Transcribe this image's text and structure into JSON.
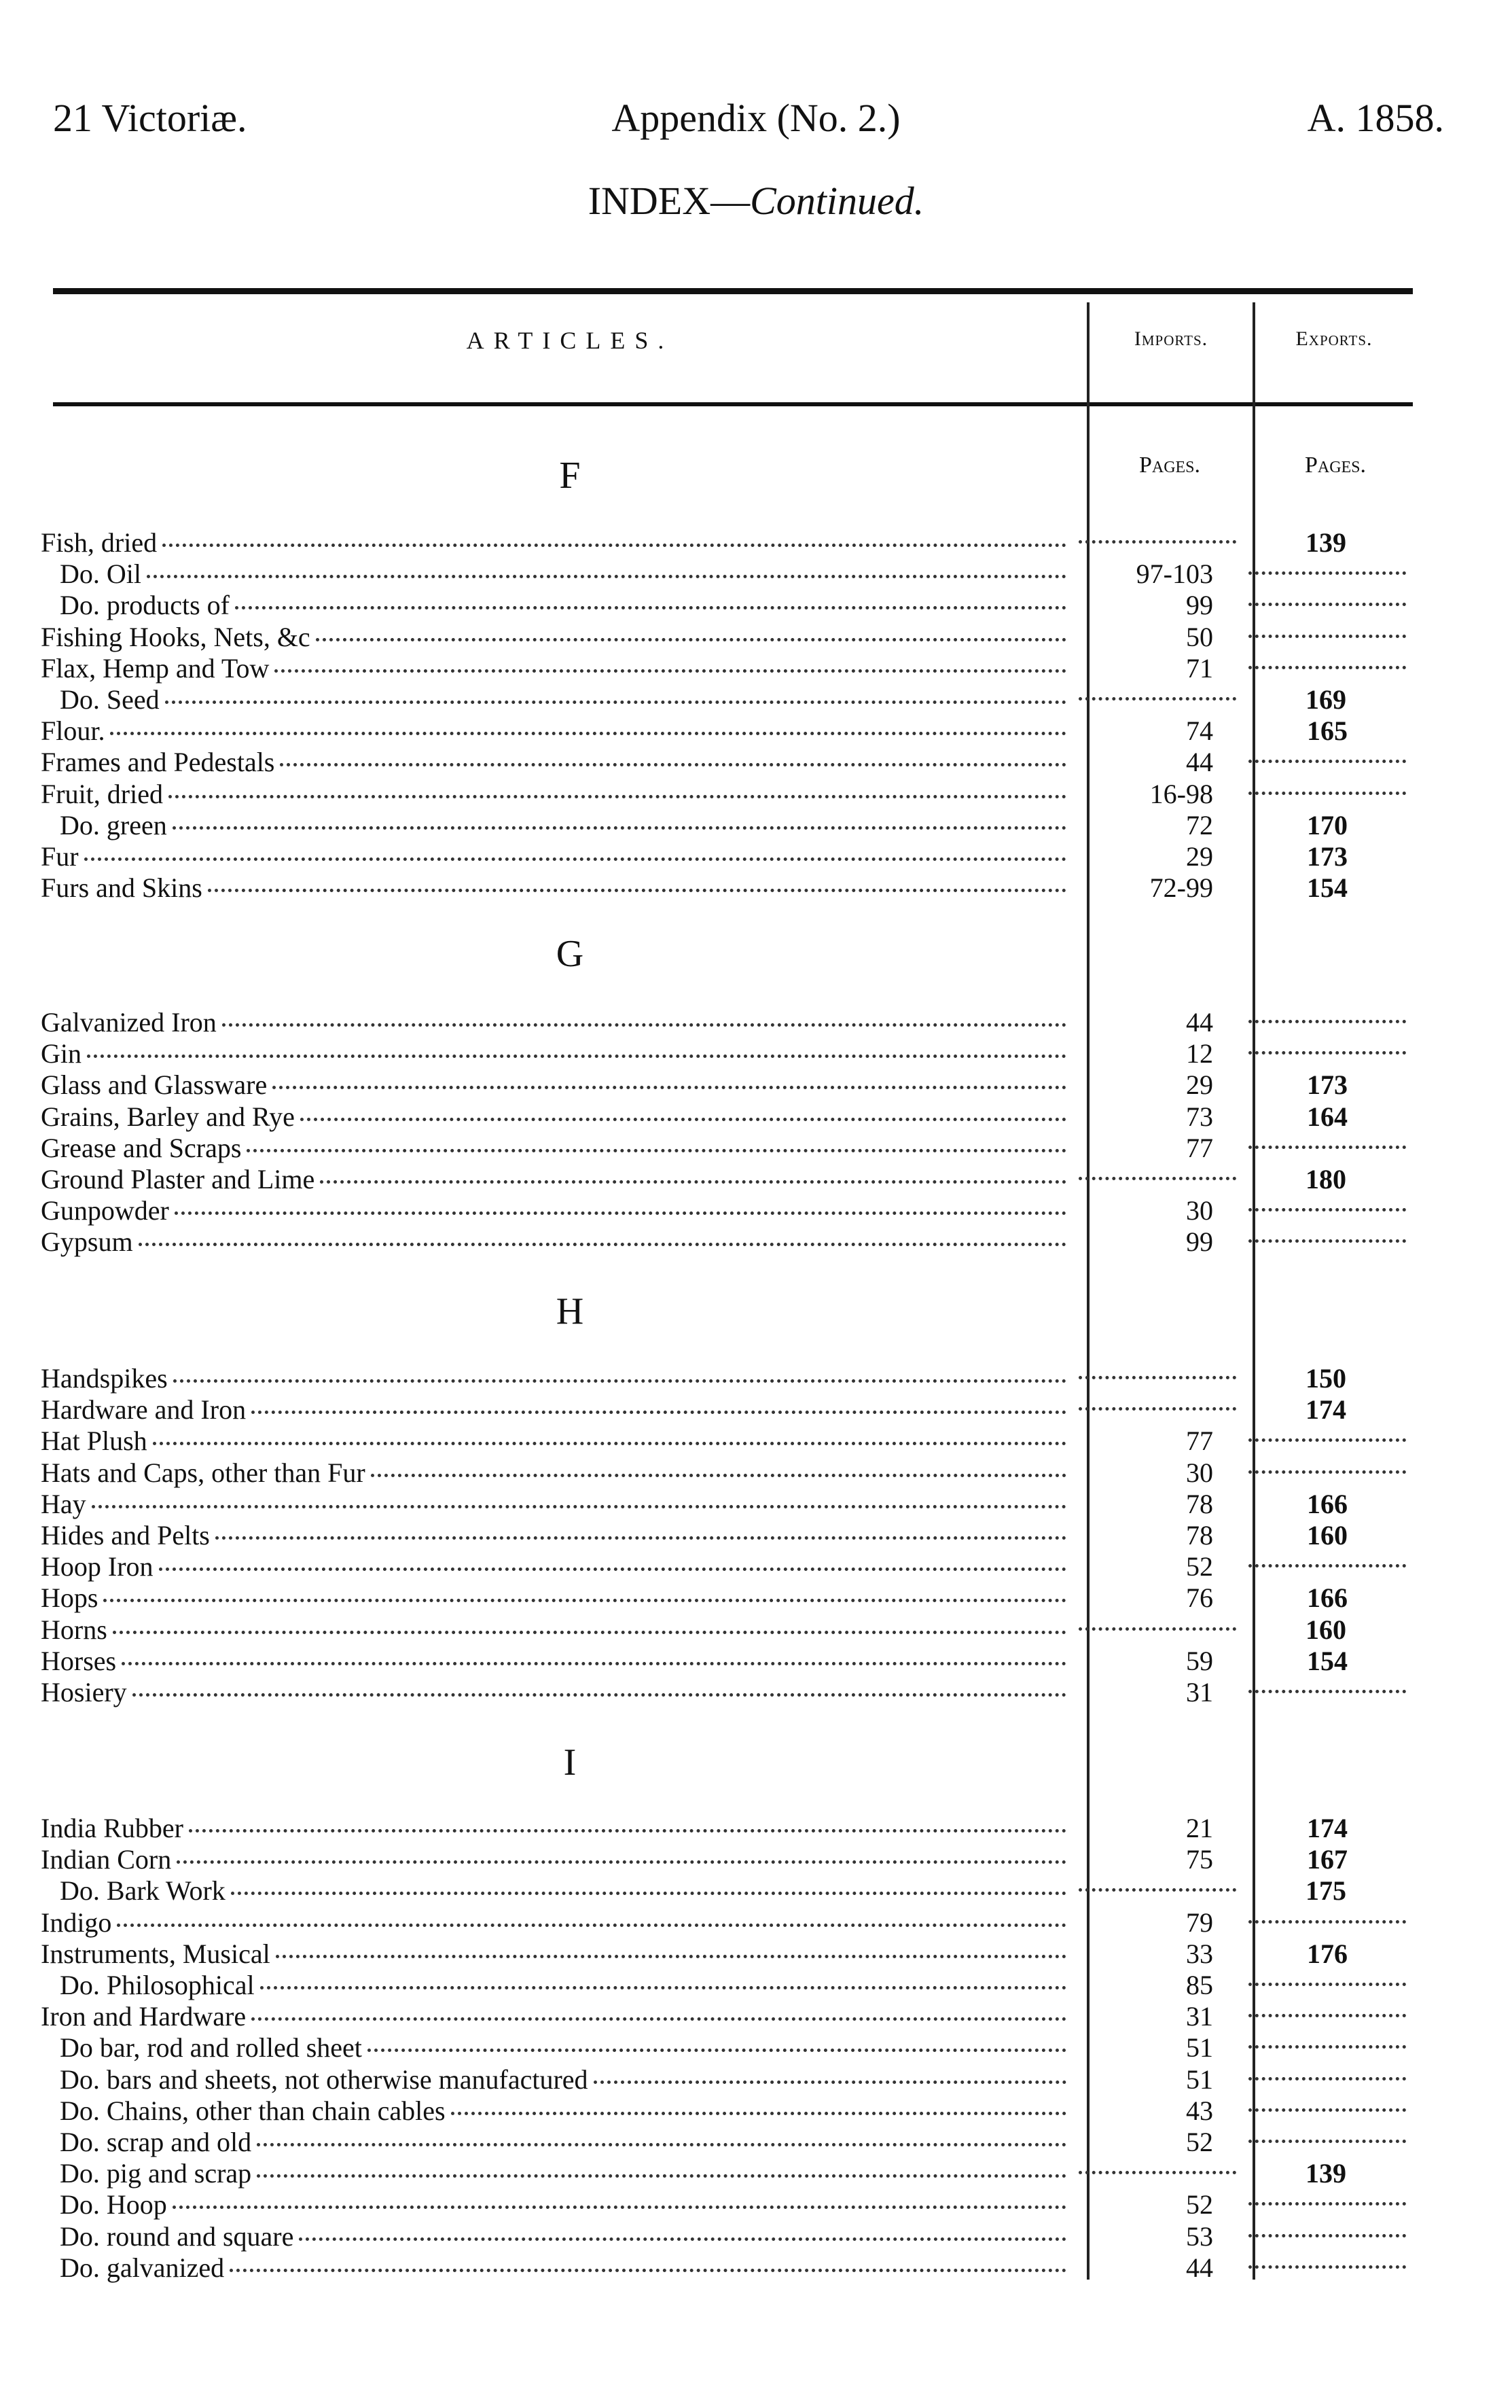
{
  "header": {
    "left": "21 Victoriæ.",
    "center": "Appendix (No. 2.)",
    "right": "A. 1858."
  },
  "index_title": {
    "main": "INDEX—",
    "italic": "Continued."
  },
  "columns": {
    "articles": "ARTICLES.",
    "imports": "Imports.",
    "exports": "Exports.",
    "pages": "Pages."
  },
  "sections": [
    {
      "letter": "F",
      "items": [
        {
          "article": "Fish, dried",
          "imports": "",
          "exports": "139"
        },
        {
          "article": "Do. Oil",
          "imports": "97-103",
          "exports": ""
        },
        {
          "article": "Do. products of",
          "imports": "99",
          "exports": ""
        },
        {
          "article": "Fishing Hooks, Nets, &c",
          "imports": "50",
          "exports": ""
        },
        {
          "article": "Flax, Hemp and Tow",
          "imports": "71",
          "exports": ""
        },
        {
          "article": "Do. Seed",
          "imports": "",
          "exports": "169"
        },
        {
          "article": "Flour.",
          "imports": "74",
          "exports": "165"
        },
        {
          "article": "Frames and Pedestals",
          "imports": "44",
          "exports": ""
        },
        {
          "article": "Fruit, dried",
          "imports": "16-98",
          "exports": ""
        },
        {
          "article": "Do. green",
          "imports": "72",
          "exports": "170"
        },
        {
          "article": "Fur",
          "imports": "29",
          "exports": "173"
        },
        {
          "article": "Furs and Skins",
          "imports": "72-99",
          "exports": "154"
        }
      ]
    },
    {
      "letter": "G",
      "items": [
        {
          "article": "Galvanized Iron",
          "imports": "44",
          "exports": ""
        },
        {
          "article": "Gin",
          "imports": "12",
          "exports": ""
        },
        {
          "article": "Glass and Glassware",
          "imports": "29",
          "exports": "173"
        },
        {
          "article": "Grains, Barley and Rye",
          "imports": "73",
          "exports": "164"
        },
        {
          "article": "Grease and Scraps",
          "imports": "77",
          "exports": ""
        },
        {
          "article": "Ground Plaster and Lime",
          "imports": "",
          "exports": "180"
        },
        {
          "article": "Gunpowder",
          "imports": "30",
          "exports": ""
        },
        {
          "article": "Gypsum",
          "imports": "99",
          "exports": ""
        }
      ]
    },
    {
      "letter": "H",
      "items": [
        {
          "article": "Handspikes",
          "imports": "",
          "exports": "150"
        },
        {
          "article": "Hardware and Iron",
          "imports": "",
          "exports": "174"
        },
        {
          "article": "Hat Plush",
          "imports": "77",
          "exports": ""
        },
        {
          "article": "Hats and Caps, other than Fur",
          "imports": "30",
          "exports": ""
        },
        {
          "article": "Hay",
          "imports": "78",
          "exports": "166"
        },
        {
          "article": "Hides and Pelts",
          "imports": "78",
          "exports": "160"
        },
        {
          "article": "Hoop Iron",
          "imports": "52",
          "exports": ""
        },
        {
          "article": "Hops",
          "imports": "76",
          "exports": "166"
        },
        {
          "article": "Horns",
          "imports": "",
          "exports": "160"
        },
        {
          "article": "Horses",
          "imports": "59",
          "exports": "154"
        },
        {
          "article": "Hosiery",
          "imports": "31",
          "exports": ""
        }
      ]
    },
    {
      "letter": "I",
      "items": [
        {
          "article": "India Rubber",
          "imports": "21",
          "exports": "174"
        },
        {
          "article": "Indian Corn",
          "imports": "75",
          "exports": "167"
        },
        {
          "article": "Do. Bark Work",
          "imports": "",
          "exports": "175"
        },
        {
          "article": "Indigo",
          "imports": "79",
          "exports": ""
        },
        {
          "article": "Instruments, Musical",
          "imports": "33",
          "exports": "176"
        },
        {
          "article": "Do. Philosophical",
          "imports": "85",
          "exports": ""
        },
        {
          "article": "Iron and Hardware",
          "imports": "31",
          "exports": ""
        },
        {
          "article": "Do bar, rod and rolled sheet",
          "imports": "51",
          "exports": ""
        },
        {
          "article": "Do. bars and sheets, not otherwise manufactured",
          "imports": "51",
          "exports": ""
        },
        {
          "article": "Do. Chains, other than chain cables",
          "imports": "43",
          "exports": ""
        },
        {
          "article": "Do. scrap and old",
          "imports": "52",
          "exports": ""
        },
        {
          "article": "Do. pig and scrap",
          "imports": "",
          "exports": "139"
        },
        {
          "article": "Do. Hoop",
          "imports": "52",
          "exports": ""
        },
        {
          "article": "Do. round and square",
          "imports": "53",
          "exports": ""
        },
        {
          "article": "Do. galvanized",
          "imports": "44",
          "exports": ""
        }
      ]
    }
  ]
}
